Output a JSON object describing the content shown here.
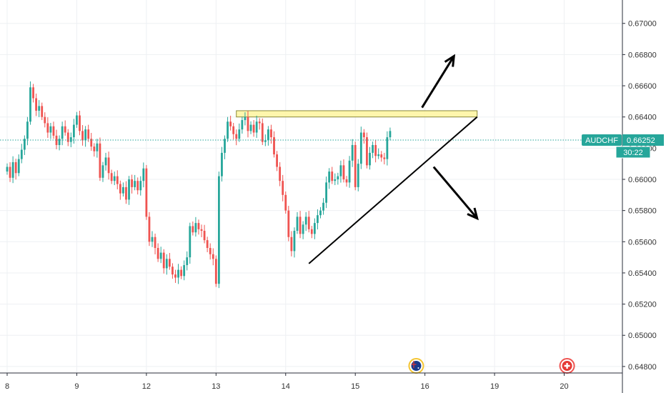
{
  "chart_data": {
    "type": "candlestick",
    "symbol": "AUDCHF",
    "last_price": "0.66252",
    "countdown": "30:22",
    "ylim": [
      0.6463,
      0.6715
    ],
    "y_ticks": [
      "0.67000",
      "0.66800",
      "0.66600",
      "0.66400",
      "0.66200",
      "0.66000",
      "0.65800",
      "0.65600",
      "0.65400",
      "0.65200",
      "0.65000",
      "0.64800"
    ],
    "x_ticks": [
      {
        "label": "8",
        "i": 0
      },
      {
        "label": "9",
        "i": 24
      },
      {
        "label": "12",
        "i": 48
      },
      {
        "label": "13",
        "i": 72
      },
      {
        "label": "14",
        "i": 96
      },
      {
        "label": "15",
        "i": 120
      },
      {
        "label": "16",
        "i": 144
      },
      {
        "label": "19",
        "i": 168
      },
      {
        "label": "20",
        "i": 192
      }
    ],
    "closes": [
      0.6608,
      0.6601,
      0.6611,
      0.6604,
      0.6613,
      0.6619,
      0.6626,
      0.6637,
      0.6659,
      0.6652,
      0.6644,
      0.6647,
      0.664,
      0.6636,
      0.663,
      0.6634,
      0.6628,
      0.6622,
      0.6626,
      0.6634,
      0.663,
      0.6624,
      0.6627,
      0.6635,
      0.6641,
      0.6631,
      0.6625,
      0.6632,
      0.6626,
      0.6621,
      0.6618,
      0.6623,
      0.6601,
      0.6609,
      0.6614,
      0.6604,
      0.6599,
      0.6602,
      0.6597,
      0.6591,
      0.6595,
      0.6587,
      0.66,
      0.6595,
      0.6599,
      0.6593,
      0.6599,
      0.6607,
      0.6576,
      0.656,
      0.6563,
      0.6556,
      0.6549,
      0.6553,
      0.6543,
      0.6549,
      0.6544,
      0.6539,
      0.6537,
      0.6542,
      0.6538,
      0.6545,
      0.655,
      0.657,
      0.6566,
      0.6572,
      0.6568,
      0.6567,
      0.6561,
      0.6556,
      0.6552,
      0.6549,
      0.6533,
      0.6602,
      0.6617,
      0.6626,
      0.6637,
      0.6634,
      0.6629,
      0.6626,
      0.6632,
      0.6638,
      0.664,
      0.6631,
      0.6635,
      0.663,
      0.6637,
      0.6636,
      0.6624,
      0.6625,
      0.6632,
      0.6627,
      0.6616,
      0.6608,
      0.6599,
      0.659,
      0.658,
      0.6563,
      0.6554,
      0.6567,
      0.6576,
      0.6565,
      0.6571,
      0.6576,
      0.6568,
      0.6565,
      0.6572,
      0.6577,
      0.658,
      0.6585,
      0.6598,
      0.6605,
      0.6599,
      0.66,
      0.6602,
      0.6609,
      0.66,
      0.6598,
      0.6612,
      0.6622,
      0.6595,
      0.661,
      0.663,
      0.6627,
      0.6609,
      0.6617,
      0.6622,
      0.6615,
      0.6616,
      0.6614,
      0.6613,
      0.6627,
      0.6631
    ],
    "annotations": {
      "resistance_zone": {
        "y_low": 0.664,
        "y_high": 0.6644,
        "x_start_i": 79,
        "x_end_i": 162,
        "color": "#fff59d"
      },
      "trend_line": {
        "from": {
          "i": 104,
          "y": 0.6546
        },
        "to": {
          "i": 162,
          "y": 0.664
        }
      },
      "arrow_up": {
        "from": {
          "i": 143,
          "y": 0.6646
        },
        "to": {
          "i": 154,
          "y": 0.6679
        }
      },
      "arrow_down": {
        "from": {
          "i": 147,
          "y": 0.6608
        },
        "to": {
          "i": 162,
          "y": 0.6575
        }
      }
    },
    "event_markers": [
      {
        "flag": "australia-flag-icon",
        "i": 141
      },
      {
        "flag": "switzerland-flag-icon",
        "i": 193
      }
    ],
    "colors": {
      "up": "#26a69a",
      "down": "#ef5350",
      "price_line": "#26a69a",
      "tag": "#26a69a",
      "grid": "#eef0f3",
      "axis_line": "#2a2e39"
    }
  }
}
